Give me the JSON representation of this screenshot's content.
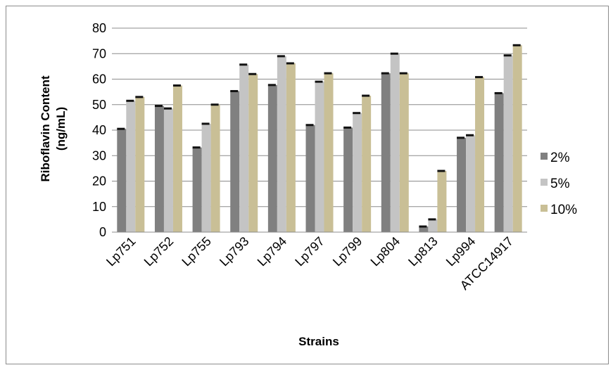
{
  "chart_data": {
    "type": "bar",
    "title": "",
    "xlabel": "Strains",
    "ylabel": "Riboflavin Content (ng/mL)",
    "ylabel_lines": [
      "Riboflavin Content",
      "(ng/mL)"
    ],
    "ylim": [
      0,
      80
    ],
    "yticks": [
      0,
      10,
      20,
      30,
      40,
      50,
      60,
      70,
      80
    ],
    "grid": true,
    "legend_position": "right",
    "categories": [
      "Lp751",
      "Lp752",
      "Lp755",
      "Lp793",
      "Lp794",
      "Lp797",
      "Lp799",
      "Lp804",
      "Lp813",
      "Lp994",
      "ATCC14917"
    ],
    "series": [
      {
        "name": "2%",
        "color": "#808080",
        "values": [
          40.5,
          49.5,
          33.2,
          55.3,
          57.7,
          42.0,
          41.0,
          62.3,
          2.2,
          37.0,
          54.5
        ]
      },
      {
        "name": "5%",
        "color": "#c4c4c4",
        "values": [
          51.5,
          48.5,
          42.5,
          65.7,
          69.0,
          59.0,
          46.7,
          70.0,
          5.0,
          38.0,
          69.3
        ]
      },
      {
        "name": "10%",
        "color": "#c9bf96",
        "values": [
          53.0,
          57.5,
          50.0,
          62.0,
          66.2,
          62.3,
          53.5,
          62.3,
          24.0,
          60.8,
          73.3
        ]
      }
    ]
  }
}
